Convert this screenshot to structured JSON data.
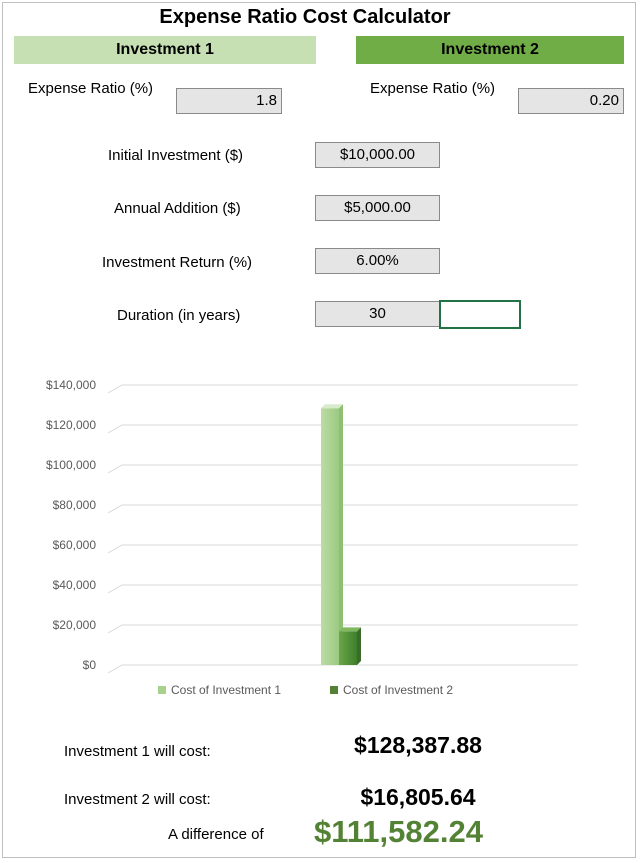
{
  "title": "Expense Ratio Cost Calculator",
  "investment1": {
    "header": "Investment 1",
    "expense_label": "Expense Ratio (%)",
    "expense_value": "1.8"
  },
  "investment2": {
    "header": "Investment 2",
    "expense_label": "Expense Ratio (%)",
    "expense_value": "0.20"
  },
  "inputs": {
    "initial_label": "Initial Investment ($)",
    "initial_value": "$10,000.00",
    "annual_label": "Annual Addition ($)",
    "annual_value": "$5,000.00",
    "return_label": "Investment Return (%)",
    "return_value": "6.00%",
    "duration_label": "Duration (in years)",
    "duration_value": "30"
  },
  "colors": {
    "inv1_light": "#c6e0b4",
    "inv2_dark": "#70ad47",
    "bar1": "#a9d18e",
    "bar2": "#548235",
    "accent_green": "#548235"
  },
  "chart_data": {
    "type": "bar",
    "categories": [
      ""
    ],
    "series": [
      {
        "name": "Cost of Investment 1",
        "values": [
          128387.88
        ]
      },
      {
        "name": "Cost of Investment 2",
        "values": [
          16805.64
        ]
      }
    ],
    "title": "",
    "xlabel": "",
    "ylabel": "",
    "ylim": [
      0,
      140000
    ],
    "yticks": [
      "$0",
      "$20,000",
      "$40,000",
      "$60,000",
      "$80,000",
      "$100,000",
      "$120,000",
      "$140,000"
    ],
    "grid": true,
    "legend": "bottom"
  },
  "results": {
    "inv1_label": "Investment 1 will cost:",
    "inv1_value": "$128,387.88",
    "inv2_label": "Investment 2 will cost:",
    "inv2_value": "$16,805.64",
    "diff_label": "A difference of",
    "diff_value": "$111,582.24"
  }
}
